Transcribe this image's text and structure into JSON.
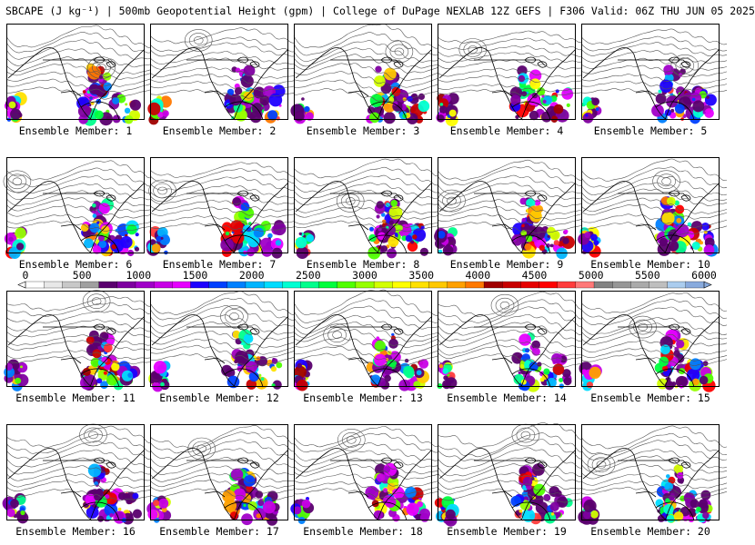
{
  "header": {
    "title": "SBCAPE (J kg⁻¹) | 500mb Geopotential Height (gpm) | College of DuPage NEXLAB 12Z GEFS | F306 Valid: 06Z THU JUN 05 2025"
  },
  "colors": {
    "cape_scale": [
      "#ffffff",
      "#e8e8e8",
      "#c8c8c8",
      "#a0a0a0",
      "#5a006e",
      "#7e00a0",
      "#a000c8",
      "#c800e6",
      "#e600ff",
      "#1e00ff",
      "#0040ff",
      "#0080ff",
      "#00b4ff",
      "#00dcff",
      "#00ffd2",
      "#00ff8c",
      "#00ff3c",
      "#50ff00",
      "#96ff00",
      "#d2ff00",
      "#ffff00",
      "#ffe100",
      "#ffc800",
      "#ffa000",
      "#ff7800",
      "#a00000",
      "#c80000",
      "#e60000",
      "#ff0000",
      "#ff3c3c",
      "#ff7878",
      "#828282",
      "#969696",
      "#aaaaaa",
      "#bebebe",
      "#aaccee",
      "#88aadd"
    ],
    "land_bg": "#ffffff",
    "contour": "#555555",
    "border": "#000000"
  },
  "colorbar": {
    "ticks": [
      "0",
      "500",
      "1000",
      "1500",
      "2000",
      "2500",
      "3000",
      "3500",
      "4000",
      "4500",
      "5000",
      "5500",
      "6000"
    ],
    "min": 0,
    "max": 6000
  },
  "members": [
    {
      "label": "Ensemble Member: 1"
    },
    {
      "label": "Ensemble Member: 2"
    },
    {
      "label": "Ensemble Member: 3"
    },
    {
      "label": "Ensemble Member: 4"
    },
    {
      "label": "Ensemble Member: 5"
    },
    {
      "label": "Ensemble Member: 6"
    },
    {
      "label": "Ensemble Member: 7"
    },
    {
      "label": "Ensemble Member: 8"
    },
    {
      "label": "Ensemble Member: 9"
    },
    {
      "label": "Ensemble Member: 10"
    },
    {
      "label": "Ensemble Member: 11"
    },
    {
      "label": "Ensemble Member: 12"
    },
    {
      "label": "Ensemble Member: 13"
    },
    {
      "label": "Ensemble Member: 14"
    },
    {
      "label": "Ensemble Member: 15"
    },
    {
      "label": "Ensemble Member: 16"
    },
    {
      "label": "Ensemble Member: 17"
    },
    {
      "label": "Ensemble Member: 18"
    },
    {
      "label": "Ensemble Member: 19"
    },
    {
      "label": "Ensemble Member: 20"
    }
  ]
}
